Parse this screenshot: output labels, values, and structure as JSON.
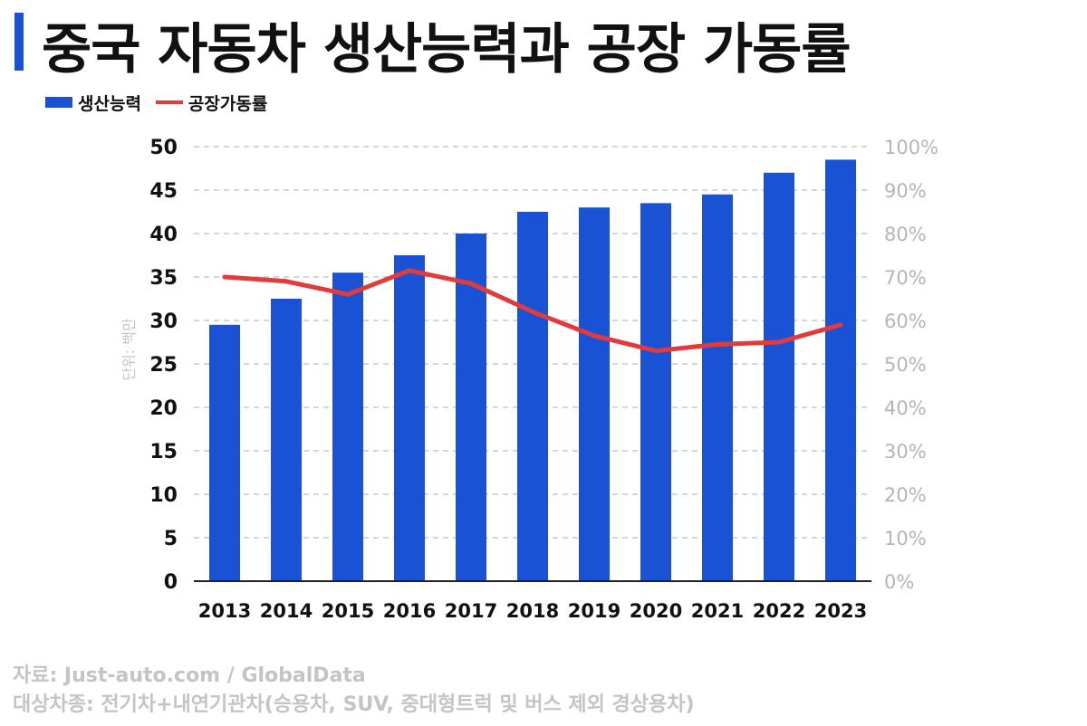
{
  "title": "중국 자동차 생산능력과 공장 가동률",
  "legend": {
    "bar_label": "생산능력",
    "line_label": "공장가동률"
  },
  "unit_label": "단위: 백만",
  "source_line1": "자료: Just-auto.com / GlobalData",
  "source_line2": "대상차종: 전기차+내연기관차(승용차, SUV, 중대형트럭 및 버스 제외 경상용차)",
  "colors": {
    "accent": "#1a52d6",
    "bar": "#1a52d6",
    "line": "#e23b3b",
    "right_axis": "#b5b5b5"
  },
  "chart_data": {
    "type": "bar",
    "categories": [
      "2013",
      "2014",
      "2015",
      "2016",
      "2017",
      "2018",
      "2019",
      "2020",
      "2021",
      "2022",
      "2023"
    ],
    "series": [
      {
        "name": "생산능력",
        "type": "bar",
        "axis": "left",
        "values": [
          29.5,
          32.5,
          35.5,
          37.5,
          40.0,
          42.5,
          43.0,
          43.5,
          44.5,
          47.0,
          48.5
        ]
      },
      {
        "name": "공장가동률",
        "type": "line",
        "axis": "right",
        "values": [
          70,
          69,
          66,
          71.5,
          68.5,
          62,
          56.5,
          53,
          54.5,
          55,
          59
        ]
      }
    ],
    "ylim_left": [
      0,
      50
    ],
    "yticks_left": [
      "0",
      "5",
      "10",
      "15",
      "20",
      "25",
      "30",
      "35",
      "40",
      "45",
      "50"
    ],
    "ylim_right": [
      0,
      100
    ],
    "yticks_right": [
      "0%",
      "10%",
      "20%",
      "30%",
      "40%",
      "50%",
      "60%",
      "70%",
      "80%",
      "90%",
      "100%"
    ],
    "ylabel_left": "단위: 백만",
    "grid": true,
    "legend_position": "top-left"
  }
}
